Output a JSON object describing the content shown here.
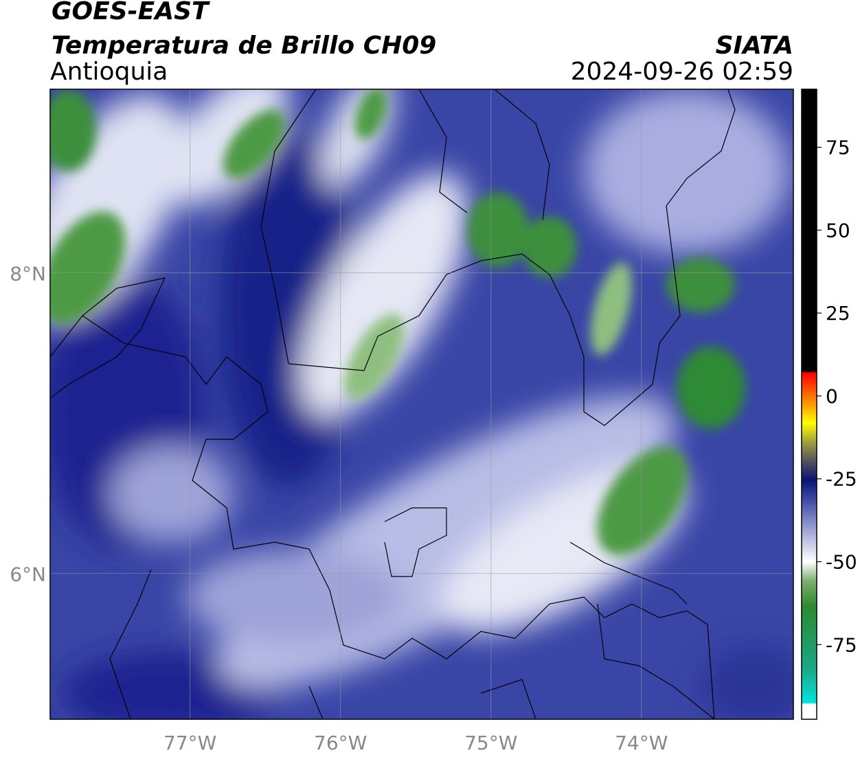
{
  "header": {
    "satellite": "GOES-EAST",
    "product": "Temperatura de Brillo CH09",
    "region": "Antioquia",
    "source": "SIATA",
    "datetime": "2024-09-26 02:59"
  },
  "map": {
    "xlim": [
      -77.93,
      -72.99
    ],
    "ylim": [
      5.03,
      9.22
    ],
    "xticks": [
      {
        "value": -77,
        "label": "77°W"
      },
      {
        "value": -76,
        "label": "76°W"
      },
      {
        "value": -75,
        "label": "75°W"
      },
      {
        "value": -74,
        "label": "74°W"
      }
    ],
    "yticks": [
      {
        "value": 8,
        "label": "8°N"
      },
      {
        "value": 6,
        "label": "6°N"
      }
    ],
    "grid": true
  },
  "colorbar": {
    "limits": [
      -97.5,
      92.5
    ],
    "ticks": [
      75,
      50,
      25,
      0,
      -25,
      -50,
      -75
    ]
  }
}
